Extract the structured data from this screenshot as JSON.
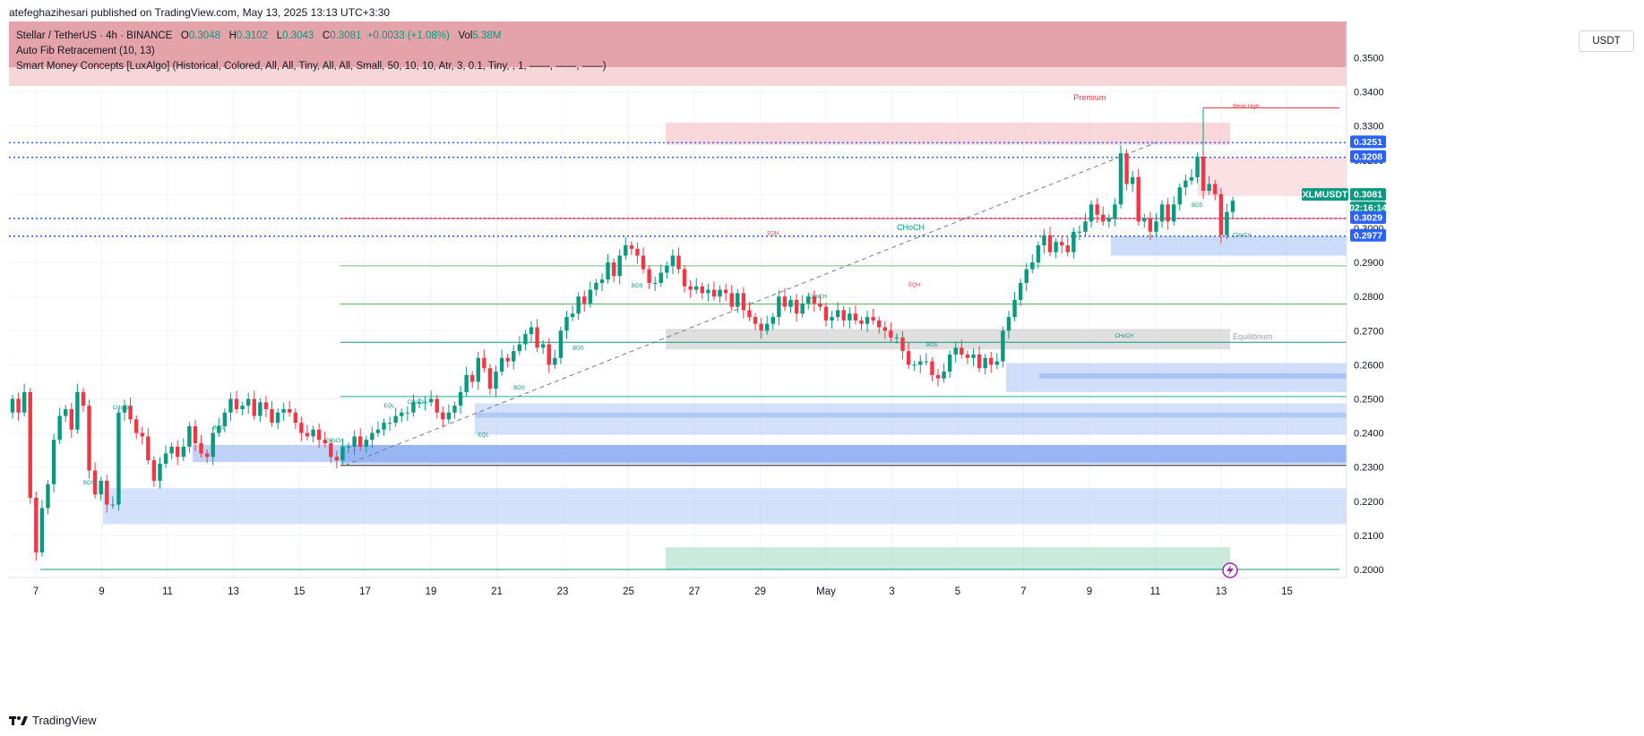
{
  "publisher": "atefeghazihesari published on TradingView.com, May 13, 2025 13:13 UTC+3:30",
  "legend": {
    "symbol": "Stellar / TetherUS · 4h · BINANCE",
    "o_label": "O",
    "o": "0.3048",
    "h_label": "H",
    "h": "0.3102",
    "l_label": "L",
    "l": "0.3043",
    "c_label": "C",
    "c": "0.3081",
    "change": "+0.0033 (+1.08%)",
    "vol_label": "Vol",
    "vol": "5.38M",
    "indicator1": "Auto Fib Retracement (10, 13)",
    "indicator2": "Smart Money Concepts [LuxAlgo] (Historical, Colored, All, All, Tiny, All, All, Small, 50, 10, 10, Atr, 3, 0.1, Tiny, , 1, ——, ——, ——)"
  },
  "currency": "USDT",
  "footer": "TradingView",
  "colors": {
    "up": "#089981",
    "down": "#f23645",
    "blue_zone": "#2962ff",
    "label_blue": "#2962ff"
  },
  "chart_data": {
    "type": "candlestick",
    "symbol": "XLMUSDT",
    "timeframe": "4h",
    "ylim": [
      0.195,
      0.355
    ],
    "y_ticks": [
      "0.3500",
      "0.3400",
      "0.3300",
      "0.3200",
      "0.3100",
      "0.3000",
      "0.2900",
      "0.2800",
      "0.2700",
      "0.2600",
      "0.2500",
      "0.2400",
      "0.2300",
      "0.2200",
      "0.2100",
      "0.2000"
    ],
    "x_ticks": [
      "7",
      "9",
      "11",
      "13",
      "15",
      "17",
      "19",
      "21",
      "23",
      "25",
      "27",
      "29",
      "May",
      "3",
      "5",
      "7",
      "9",
      "11",
      "13",
      "15"
    ],
    "closes": [
      0.25,
      0.246,
      0.252,
      0.221,
      0.205,
      0.218,
      0.225,
      0.238,
      0.245,
      0.247,
      0.241,
      0.252,
      0.248,
      0.229,
      0.222,
      0.226,
      0.219,
      0.219,
      0.246,
      0.248,
      0.244,
      0.24,
      0.239,
      0.232,
      0.226,
      0.231,
      0.234,
      0.236,
      0.233,
      0.236,
      0.242,
      0.237,
      0.234,
      0.233,
      0.24,
      0.242,
      0.246,
      0.25,
      0.247,
      0.248,
      0.25,
      0.245,
      0.249,
      0.247,
      0.243,
      0.246,
      0.247,
      0.246,
      0.243,
      0.24,
      0.239,
      0.241,
      0.238,
      0.237,
      0.233,
      0.232,
      0.236,
      0.236,
      0.239,
      0.236,
      0.238,
      0.24,
      0.241,
      0.243,
      0.243,
      0.245,
      0.246,
      0.246,
      0.249,
      0.249,
      0.249,
      0.25,
      0.246,
      0.244,
      0.246,
      0.248,
      0.252,
      0.257,
      0.255,
      0.262,
      0.259,
      0.253,
      0.258,
      0.262,
      0.261,
      0.264,
      0.266,
      0.269,
      0.271,
      0.265,
      0.266,
      0.26,
      0.262,
      0.27,
      0.274,
      0.275,
      0.28,
      0.278,
      0.282,
      0.284,
      0.285,
      0.29,
      0.286,
      0.292,
      0.295,
      0.294,
      0.292,
      0.288,
      0.284,
      0.284,
      0.287,
      0.289,
      0.292,
      0.288,
      0.283,
      0.282,
      0.283,
      0.281,
      0.282,
      0.28,
      0.282,
      0.281,
      0.277,
      0.281,
      0.276,
      0.274,
      0.272,
      0.27,
      0.272,
      0.274,
      0.28,
      0.277,
      0.279,
      0.275,
      0.278,
      0.28,
      0.278,
      0.277,
      0.273,
      0.274,
      0.276,
      0.273,
      0.275,
      0.273,
      0.272,
      0.274,
      0.273,
      0.271,
      0.27,
      0.268,
      0.268,
      0.264,
      0.26,
      0.26,
      0.261,
      0.261,
      0.257,
      0.256,
      0.258,
      0.263,
      0.265,
      0.263,
      0.262,
      0.263,
      0.259,
      0.262,
      0.26,
      0.261,
      0.27,
      0.274,
      0.279,
      0.284,
      0.288,
      0.29,
      0.295,
      0.298,
      0.293,
      0.296,
      0.295,
      0.293,
      0.299,
      0.299,
      0.302,
      0.307,
      0.304,
      0.302,
      0.303,
      0.307,
      0.322,
      0.313,
      0.315,
      0.302,
      0.303,
      0.299,
      0.302,
      0.307,
      0.302,
      0.307,
      0.312,
      0.314,
      0.315,
      0.321,
      0.311,
      0.313,
      0.31,
      0.298,
      0.3048,
      0.3081
    ],
    "price_labels": [
      {
        "text": "0.3251",
        "value": 0.3251,
        "color": "blue"
      },
      {
        "text": "0.3208",
        "value": 0.3208,
        "color": "blue"
      },
      {
        "text": "XLMUSDT",
        "value": 0.3081,
        "color": "green"
      },
      {
        "text": "0.3081",
        "value": 0.3081,
        "color": "green"
      },
      {
        "text": "02:16:14",
        "value": 0.3081,
        "color": "green"
      },
      {
        "text": "0.3029",
        "value": 0.3029,
        "color": "blue"
      },
      {
        "text": "0.2977",
        "value": 0.2977,
        "color": "blue"
      }
    ],
    "annotations": [
      {
        "text": "Premium",
        "value": 0.3375,
        "bar": 180
      },
      {
        "text": "Equilibrium",
        "value": 0.2675,
        "bar": 230
      },
      {
        "text": "Weak High",
        "value": 0.3353,
        "bar": 230
      },
      {
        "text": "CHoCH",
        "value": 0.2995,
        "bar": 150
      },
      {
        "text": "BOS",
        "value": 0.3063,
        "bar": 200
      },
      {
        "text": "BOS",
        "value": 0.2827,
        "bar": 105
      },
      {
        "text": "BOS",
        "value": 0.2645,
        "bar": 95
      },
      {
        "text": "BOS",
        "value": 0.2527,
        "bar": 85
      },
      {
        "text": "BOS",
        "value": 0.2411,
        "bar": 34
      },
      {
        "text": "BOS",
        "value": 0.2654,
        "bar": 155
      },
      {
        "text": "BOS",
        "value": 0.225,
        "bar": 12
      },
      {
        "text": "CHoCH",
        "value": 0.247,
        "bar": 17
      },
      {
        "text": "CHoCH",
        "value": 0.2373,
        "bar": 53
      },
      {
        "text": "CHoCH",
        "value": 0.2795,
        "bar": 135
      },
      {
        "text": "CHoCH",
        "value": 0.2975,
        "bar": 210
      },
      {
        "text": "CHoCH",
        "value": 0.268,
        "bar": 187
      },
      {
        "text": "CHoCH",
        "value": 0.2485,
        "bar": 67
      },
      {
        "text": "EQH",
        "value": 0.298,
        "bar": 128
      },
      {
        "text": "EQH",
        "value": 0.283,
        "bar": 152
      },
      {
        "text": "EQL",
        "value": 0.2475,
        "bar": 63
      },
      {
        "text": "EQL",
        "value": 0.239,
        "bar": 79
      }
    ]
  }
}
